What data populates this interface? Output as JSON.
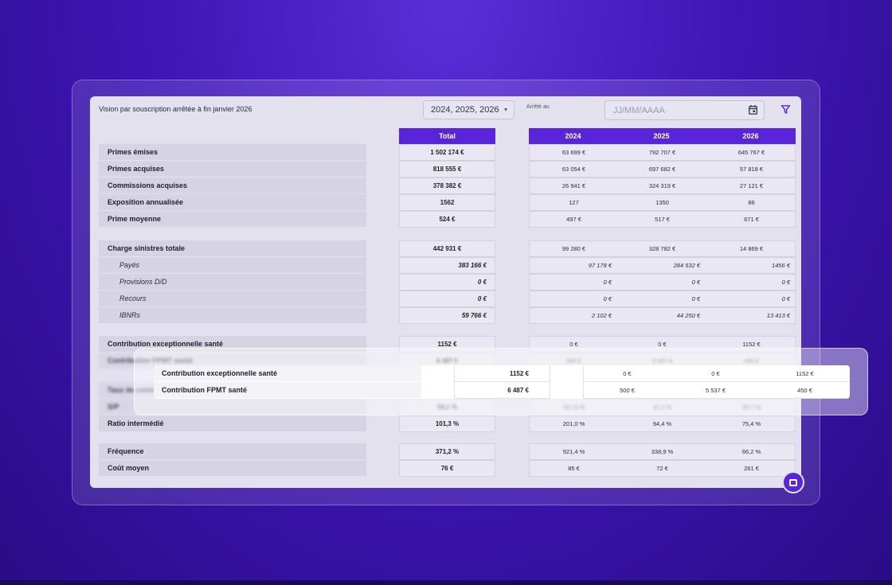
{
  "toolbar": {
    "title": "Vision par souscription arrêtée à fin janvier 2026",
    "years_value": "2024, 2025, 2026",
    "arrete_label": "Arrêté au",
    "date_placeholder": "JJ/MM/AAAA"
  },
  "headers": {
    "total": "Total",
    "years": [
      "2024",
      "2025",
      "2026"
    ]
  },
  "rows": [
    {
      "label": "Primes émises",
      "total": "1 502 174 €",
      "years": [
        "63 699 €",
        "792 707 €",
        "645 767 €"
      ]
    },
    {
      "label": "Primes acquises",
      "total": "818 555 €",
      "years": [
        "63 054 €",
        "697 682 €",
        "57 818 €"
      ]
    },
    {
      "label": "Commissions acquises",
      "total": "378 382 €",
      "years": [
        "26 941 €",
        "324 319 €",
        "27 121 €"
      ]
    },
    {
      "label": "Exposition annualisée",
      "total": "1562",
      "years": [
        "127",
        "1350",
        "86"
      ]
    },
    {
      "label": "Prime moyenne",
      "total": "524 €",
      "years": [
        "497 €",
        "517 €",
        "671 €"
      ]
    },
    {
      "label": "Charge sinistres totale",
      "total": "442 931 €",
      "years": [
        "99 280 €",
        "328 782 €",
        "14 869 €"
      ]
    },
    {
      "label": "Payés",
      "total": "383 166 €",
      "years": [
        "97 178 €",
        "284 532 €",
        "1456 €"
      ]
    },
    {
      "label": "Provisions D/D",
      "total": "0 €",
      "years": [
        "0 €",
        "0 €",
        "0 €"
      ]
    },
    {
      "label": "Recours",
      "total": "0 €",
      "years": [
        "0 €",
        "0 €",
        "0 €"
      ]
    },
    {
      "label": "IBNRs",
      "total": "59 766 €",
      "years": [
        "2 102 €",
        "44 250 €",
        "13 413 €"
      ]
    },
    {
      "label": "Contribution exceptionnelle santé",
      "total": "1152 €",
      "years": [
        "0 €",
        "0 €",
        "1152 €"
      ]
    },
    {
      "label": "Contribution FPMT santé",
      "total": "6 487 €",
      "years": [
        "500 €",
        "5 537 €",
        "450 €"
      ]
    },
    {
      "label": "Taux de commission",
      "total": "",
      "years": [
        "",
        "",
        ""
      ]
    },
    {
      "label": "S/P",
      "total": "54,1 %",
      "years": [
        "157,5 %",
        "47,1 %",
        "25,7 %"
      ]
    },
    {
      "label": "Ratio intermédié",
      "total": "101,3 %",
      "years": [
        "201,0 %",
        "94,4 %",
        "75,4 %"
      ]
    },
    {
      "label": "Fréquence",
      "total": "371,2 %",
      "years": [
        "921,4 %",
        "338,9 %",
        "66,2 %"
      ]
    },
    {
      "label": "Coût moyen",
      "total": "76 €",
      "years": [
        "85 €",
        "72 €",
        "261 €"
      ]
    }
  ],
  "overlay": [
    {
      "label": "Contribution exceptionnelle santé",
      "total": "1152 €",
      "years": [
        "0 €",
        "0 €",
        "1152 €"
      ]
    },
    {
      "label": "Contribution FPMT santé",
      "total": "6 487 €",
      "years": [
        "500 €",
        "5 537 €",
        "450 €"
      ]
    }
  ],
  "colors": {
    "accent": "#5a24d8",
    "background": "#3f16b8"
  }
}
